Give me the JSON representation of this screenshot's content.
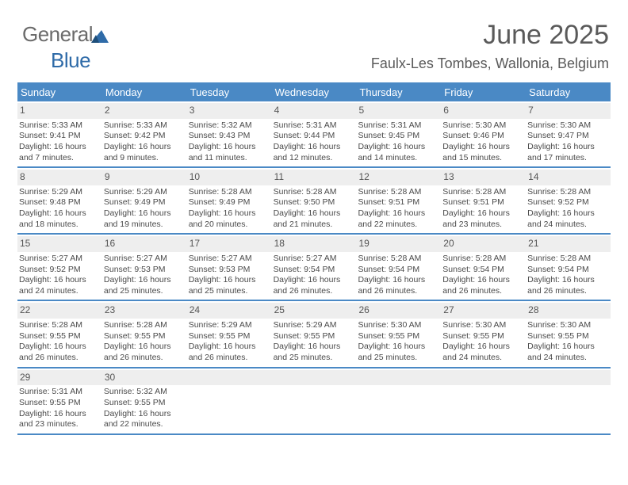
{
  "logo": {
    "part1": "General",
    "part2": "Blue"
  },
  "title": "June 2025",
  "subtitle": "Faulx-Les Tombes, Wallonia, Belgium",
  "colors": {
    "accent": "#4a89c5",
    "headerText": "#ffffff",
    "dayNumBg": "#eeeeee",
    "text": "#4a4a4a"
  },
  "headerDays": [
    "Sunday",
    "Monday",
    "Tuesday",
    "Wednesday",
    "Thursday",
    "Friday",
    "Saturday"
  ],
  "weeks": [
    [
      {
        "n": "1",
        "sunrise": "5:33 AM",
        "sunset": "9:41 PM",
        "daylight": "16 hours and 7 minutes."
      },
      {
        "n": "2",
        "sunrise": "5:33 AM",
        "sunset": "9:42 PM",
        "daylight": "16 hours and 9 minutes."
      },
      {
        "n": "3",
        "sunrise": "5:32 AM",
        "sunset": "9:43 PM",
        "daylight": "16 hours and 11 minutes."
      },
      {
        "n": "4",
        "sunrise": "5:31 AM",
        "sunset": "9:44 PM",
        "daylight": "16 hours and 12 minutes."
      },
      {
        "n": "5",
        "sunrise": "5:31 AM",
        "sunset": "9:45 PM",
        "daylight": "16 hours and 14 minutes."
      },
      {
        "n": "6",
        "sunrise": "5:30 AM",
        "sunset": "9:46 PM",
        "daylight": "16 hours and 15 minutes."
      },
      {
        "n": "7",
        "sunrise": "5:30 AM",
        "sunset": "9:47 PM",
        "daylight": "16 hours and 17 minutes."
      }
    ],
    [
      {
        "n": "8",
        "sunrise": "5:29 AM",
        "sunset": "9:48 PM",
        "daylight": "16 hours and 18 minutes."
      },
      {
        "n": "9",
        "sunrise": "5:29 AM",
        "sunset": "9:49 PM",
        "daylight": "16 hours and 19 minutes."
      },
      {
        "n": "10",
        "sunrise": "5:28 AM",
        "sunset": "9:49 PM",
        "daylight": "16 hours and 20 minutes."
      },
      {
        "n": "11",
        "sunrise": "5:28 AM",
        "sunset": "9:50 PM",
        "daylight": "16 hours and 21 minutes."
      },
      {
        "n": "12",
        "sunrise": "5:28 AM",
        "sunset": "9:51 PM",
        "daylight": "16 hours and 22 minutes."
      },
      {
        "n": "13",
        "sunrise": "5:28 AM",
        "sunset": "9:51 PM",
        "daylight": "16 hours and 23 minutes."
      },
      {
        "n": "14",
        "sunrise": "5:28 AM",
        "sunset": "9:52 PM",
        "daylight": "16 hours and 24 minutes."
      }
    ],
    [
      {
        "n": "15",
        "sunrise": "5:27 AM",
        "sunset": "9:52 PM",
        "daylight": "16 hours and 24 minutes."
      },
      {
        "n": "16",
        "sunrise": "5:27 AM",
        "sunset": "9:53 PM",
        "daylight": "16 hours and 25 minutes."
      },
      {
        "n": "17",
        "sunrise": "5:27 AM",
        "sunset": "9:53 PM",
        "daylight": "16 hours and 25 minutes."
      },
      {
        "n": "18",
        "sunrise": "5:27 AM",
        "sunset": "9:54 PM",
        "daylight": "16 hours and 26 minutes."
      },
      {
        "n": "19",
        "sunrise": "5:28 AM",
        "sunset": "9:54 PM",
        "daylight": "16 hours and 26 minutes."
      },
      {
        "n": "20",
        "sunrise": "5:28 AM",
        "sunset": "9:54 PM",
        "daylight": "16 hours and 26 minutes."
      },
      {
        "n": "21",
        "sunrise": "5:28 AM",
        "sunset": "9:54 PM",
        "daylight": "16 hours and 26 minutes."
      }
    ],
    [
      {
        "n": "22",
        "sunrise": "5:28 AM",
        "sunset": "9:55 PM",
        "daylight": "16 hours and 26 minutes."
      },
      {
        "n": "23",
        "sunrise": "5:28 AM",
        "sunset": "9:55 PM",
        "daylight": "16 hours and 26 minutes."
      },
      {
        "n": "24",
        "sunrise": "5:29 AM",
        "sunset": "9:55 PM",
        "daylight": "16 hours and 26 minutes."
      },
      {
        "n": "25",
        "sunrise": "5:29 AM",
        "sunset": "9:55 PM",
        "daylight": "16 hours and 25 minutes."
      },
      {
        "n": "26",
        "sunrise": "5:30 AM",
        "sunset": "9:55 PM",
        "daylight": "16 hours and 25 minutes."
      },
      {
        "n": "27",
        "sunrise": "5:30 AM",
        "sunset": "9:55 PM",
        "daylight": "16 hours and 24 minutes."
      },
      {
        "n": "28",
        "sunrise": "5:30 AM",
        "sunset": "9:55 PM",
        "daylight": "16 hours and 24 minutes."
      }
    ],
    [
      {
        "n": "29",
        "sunrise": "5:31 AM",
        "sunset": "9:55 PM",
        "daylight": "16 hours and 23 minutes."
      },
      {
        "n": "30",
        "sunrise": "5:32 AM",
        "sunset": "9:55 PM",
        "daylight": "16 hours and 22 minutes."
      },
      {
        "empty": true
      },
      {
        "empty": true
      },
      {
        "empty": true
      },
      {
        "empty": true
      },
      {
        "empty": true
      }
    ]
  ],
  "labels": {
    "sunrise": "Sunrise: ",
    "sunset": "Sunset: ",
    "daylight": "Daylight: "
  }
}
